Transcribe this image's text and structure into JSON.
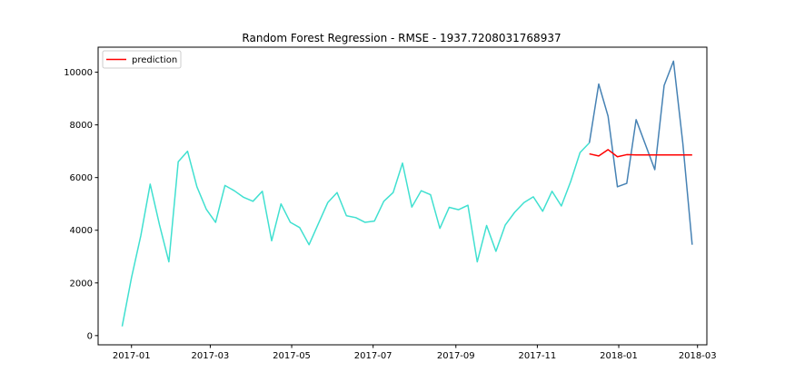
{
  "chart_data": {
    "type": "line",
    "title": "Random Forest Regression - RMSE - 1937.7208031768937",
    "xlabel": "",
    "ylabel": "",
    "x_axis": {
      "kind": "date",
      "range": [
        "2016-12-07",
        "2018-03-08"
      ],
      "ticks": [
        {
          "date": "2017-01-01",
          "label": "2017-01"
        },
        {
          "date": "2017-03-01",
          "label": "2017-03"
        },
        {
          "date": "2017-05-01",
          "label": "2017-05"
        },
        {
          "date": "2017-07-01",
          "label": "2017-07"
        },
        {
          "date": "2017-09-01",
          "label": "2017-09"
        },
        {
          "date": "2017-11-01",
          "label": "2017-11"
        },
        {
          "date": "2018-01-01",
          "label": "2018-01"
        },
        {
          "date": "2018-03-01",
          "label": "2018-03"
        }
      ]
    },
    "y_axis": {
      "range": [
        -350,
        10950
      ],
      "ticks": [
        0,
        2000,
        4000,
        6000,
        8000,
        10000
      ]
    },
    "grid": false,
    "legend": {
      "placement": "upper-left",
      "entries": [
        "prediction"
      ]
    },
    "series": [
      {
        "key": "train",
        "color": "#40e0d0",
        "points": [
          [
            "2016-12-25",
            350
          ],
          [
            "2017-01-01",
            2200
          ],
          [
            "2017-01-08",
            3800
          ],
          [
            "2017-01-15",
            5750
          ],
          [
            "2017-01-22",
            4200
          ],
          [
            "2017-01-29",
            2800
          ],
          [
            "2017-02-05",
            6600
          ],
          [
            "2017-02-12",
            7000
          ],
          [
            "2017-02-19",
            5650
          ],
          [
            "2017-02-26",
            4800
          ],
          [
            "2017-03-05",
            4300
          ],
          [
            "2017-03-12",
            5700
          ],
          [
            "2017-03-19",
            5500
          ],
          [
            "2017-03-26",
            5250
          ],
          [
            "2017-04-02",
            5100
          ],
          [
            "2017-04-09",
            5480
          ],
          [
            "2017-04-16",
            3600
          ],
          [
            "2017-04-23",
            5000
          ],
          [
            "2017-04-30",
            4300
          ],
          [
            "2017-05-07",
            4100
          ],
          [
            "2017-05-14",
            3450
          ],
          [
            "2017-05-21",
            4250
          ],
          [
            "2017-05-28",
            5050
          ],
          [
            "2017-06-04",
            5430
          ],
          [
            "2017-06-11",
            4550
          ],
          [
            "2017-06-18",
            4480
          ],
          [
            "2017-06-25",
            4300
          ],
          [
            "2017-07-02",
            4350
          ],
          [
            "2017-07-09",
            5100
          ],
          [
            "2017-07-16",
            5430
          ],
          [
            "2017-07-23",
            6550
          ],
          [
            "2017-07-30",
            4880
          ],
          [
            "2017-08-06",
            5500
          ],
          [
            "2017-08-13",
            5350
          ],
          [
            "2017-08-20",
            4070
          ],
          [
            "2017-08-27",
            4870
          ],
          [
            "2017-09-03",
            4780
          ],
          [
            "2017-09-10",
            4950
          ],
          [
            "2017-09-17",
            2800
          ],
          [
            "2017-09-24",
            4180
          ],
          [
            "2017-10-01",
            3200
          ],
          [
            "2017-10-08",
            4200
          ],
          [
            "2017-10-15",
            4680
          ],
          [
            "2017-10-22",
            5050
          ],
          [
            "2017-10-29",
            5270
          ],
          [
            "2017-11-05",
            4720
          ],
          [
            "2017-11-12",
            5480
          ],
          [
            "2017-11-19",
            4920
          ],
          [
            "2017-11-26",
            5850
          ],
          [
            "2017-12-03",
            6950
          ],
          [
            "2017-12-10",
            7320
          ]
        ]
      },
      {
        "key": "test",
        "color": "#4682b4",
        "points": [
          [
            "2017-12-10",
            7320
          ],
          [
            "2017-12-17",
            9550
          ],
          [
            "2017-12-24",
            8330
          ],
          [
            "2017-12-31",
            5650
          ],
          [
            "2018-01-07",
            5780
          ],
          [
            "2018-01-14",
            8200
          ],
          [
            "2018-01-21",
            7250
          ],
          [
            "2018-01-28",
            6300
          ],
          [
            "2018-02-04",
            9500
          ],
          [
            "2018-02-11",
            10420
          ],
          [
            "2018-02-18",
            7300
          ],
          [
            "2018-02-25",
            3450
          ]
        ]
      },
      {
        "key": "prediction",
        "name": "prediction",
        "color": "#ff0000",
        "points": [
          [
            "2017-12-10",
            6900
          ],
          [
            "2017-12-17",
            6820
          ],
          [
            "2017-12-24",
            7060
          ],
          [
            "2017-12-31",
            6790
          ],
          [
            "2018-01-07",
            6870
          ],
          [
            "2018-01-14",
            6860
          ],
          [
            "2018-01-21",
            6860
          ],
          [
            "2018-01-28",
            6860
          ],
          [
            "2018-02-04",
            6860
          ],
          [
            "2018-02-11",
            6860
          ],
          [
            "2018-02-18",
            6860
          ],
          [
            "2018-02-25",
            6860
          ]
        ]
      }
    ]
  }
}
